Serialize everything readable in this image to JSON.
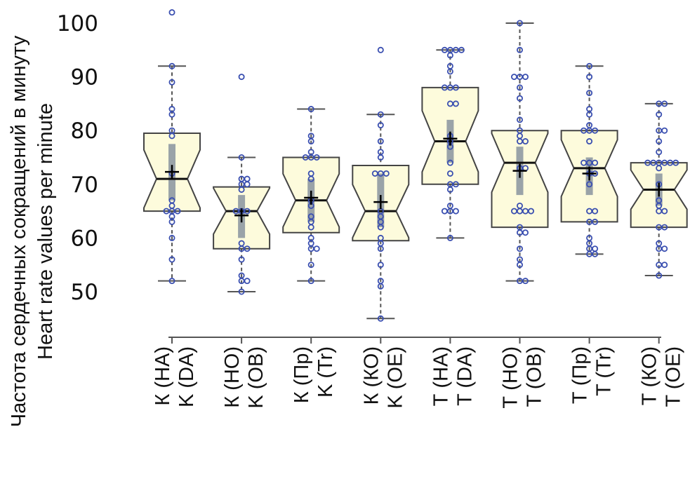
{
  "chart_data": {
    "type": "boxplot",
    "ylabel": [
      "Частота сердечных сокращений в минуту",
      "Heart rate values per minute"
    ],
    "xlabel": "",
    "ylim": [
      45,
      103
    ],
    "yticks": [
      50,
      60,
      70,
      80,
      90,
      100
    ],
    "grid": false,
    "notched": true,
    "colors": {
      "box_fill": "#fdfbdc",
      "box_stroke": "#444444",
      "points": "#3a4fb0",
      "ci_bar": "#9aa3a8",
      "median": "#111111"
    },
    "groups": [
      {
        "label": [
          "К (НА)",
          "K (DA)"
        ],
        "whisker_low": 52,
        "q1": 65,
        "median": 71,
        "q3": 79.5,
        "whisker_high": 92,
        "mean": 72.3,
        "ci": [
          67,
          77.5
        ],
        "points": [
          102,
          92,
          89,
          84,
          83,
          80,
          79,
          72,
          67,
          66,
          65,
          65,
          65,
          64,
          63,
          60,
          56,
          52
        ]
      },
      {
        "label": [
          "К (НО)",
          "K (OB)"
        ],
        "whisker_low": 50,
        "q1": 58,
        "median": 65,
        "q3": 69.5,
        "whisker_high": 75,
        "mean": 64.2,
        "ci": [
          60,
          68
        ],
        "points": [
          90,
          75,
          71,
          71,
          70,
          70,
          69,
          65,
          65,
          65,
          59,
          58,
          58,
          56,
          53,
          52,
          52,
          50
        ]
      },
      {
        "label": [
          "К (Пр)",
          "K (Tr)"
        ],
        "whisker_low": 52,
        "q1": 61,
        "median": 67,
        "q3": 75,
        "whisker_high": 84,
        "mean": 67.5,
        "ci": [
          63,
          71
        ],
        "points": [
          84,
          79,
          78,
          76,
          75,
          75,
          75,
          72,
          71,
          67,
          66,
          64,
          63,
          62,
          60,
          59,
          58,
          58,
          55,
          52
        ]
      },
      {
        "label": [
          "К (КО)",
          "K (OE)"
        ],
        "whisker_low": 45,
        "q1": 59.5,
        "median": 65,
        "q3": 73.5,
        "whisker_high": 83,
        "mean": 66.7,
        "ci": [
          62,
          72
        ],
        "points": [
          95,
          83,
          81,
          78,
          76,
          75,
          72,
          72,
          72,
          65,
          64,
          63,
          62,
          60,
          59,
          58,
          55,
          52,
          51,
          45
        ]
      },
      {
        "label": [
          "Т (НА)",
          "T (DA)"
        ],
        "whisker_low": 60,
        "q1": 70,
        "median": 78,
        "q3": 88,
        "whisker_high": 95,
        "mean": 78.5,
        "ci": [
          74,
          82
        ],
        "points": [
          95,
          95,
          95,
          95,
          94,
          92,
          91,
          88,
          88,
          88,
          85,
          85,
          79,
          78,
          77,
          74,
          72,
          70,
          70,
          69,
          66,
          65,
          65,
          65,
          60
        ]
      },
      {
        "label": [
          "Т (НО)",
          "T (OB)"
        ],
        "whisker_low": 52,
        "q1": 62,
        "median": 74,
        "q3": 80,
        "whisker_high": 100,
        "mean": 72.5,
        "ci": [
          68,
          77
        ],
        "points": [
          100,
          95,
          90,
          90,
          90,
          88,
          86,
          82,
          80,
          79,
          78,
          78,
          73,
          73,
          66,
          65,
          65,
          65,
          65,
          62,
          61,
          61,
          58,
          56,
          55,
          52,
          52
        ]
      },
      {
        "label": [
          "Т (Пр)",
          "T (Tr)"
        ],
        "whisker_low": 57,
        "q1": 63,
        "median": 73,
        "q3": 80,
        "whisker_high": 92,
        "mean": 72,
        "ci": [
          68,
          75
        ],
        "points": [
          92,
          90,
          87,
          84,
          83,
          81,
          80,
          80,
          80,
          78,
          74,
          74,
          74,
          72,
          72,
          70,
          65,
          65,
          63,
          63,
          60,
          59,
          58,
          58,
          57,
          57
        ]
      },
      {
        "label": [
          "Т (КО)",
          "T (OE)"
        ],
        "whisker_low": 53,
        "q1": 62,
        "median": 69,
        "q3": 74,
        "whisker_high": 85,
        "mean": 69,
        "ci": [
          66,
          72
        ],
        "points": [
          85,
          85,
          83,
          80,
          80,
          78,
          76,
          74,
          74,
          74,
          74,
          74,
          74,
          73,
          70,
          67,
          66,
          65,
          65,
          62,
          62,
          59,
          58,
          58,
          55,
          55,
          53
        ]
      }
    ]
  }
}
